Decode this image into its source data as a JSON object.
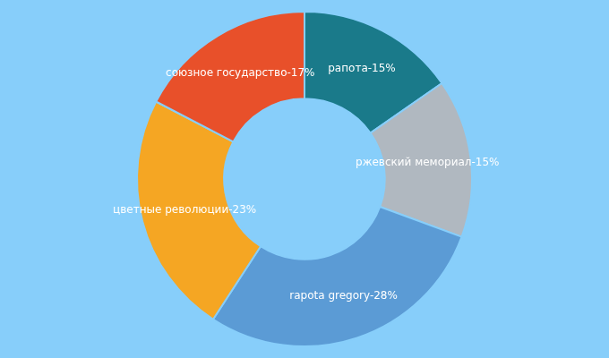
{
  "chart_data": {
    "type": "doughnut",
    "categories": [
      "рапота",
      "ржевский мемориал",
      "rapota gregory",
      "цветные революции",
      "союзное государство"
    ],
    "values": [
      15,
      15,
      28,
      23,
      17
    ],
    "value_labels": [
      "рапота-15%",
      "ржевский мемориал-15%",
      "rapota gregory-28%",
      "цветные революции-23%",
      "союзное государство-17%"
    ],
    "colors": [
      "#1a7a8a",
      "#b0b8c0",
      "#5b9bd5",
      "#f5a623",
      "#e8502a"
    ],
    "data_labels": true
  }
}
